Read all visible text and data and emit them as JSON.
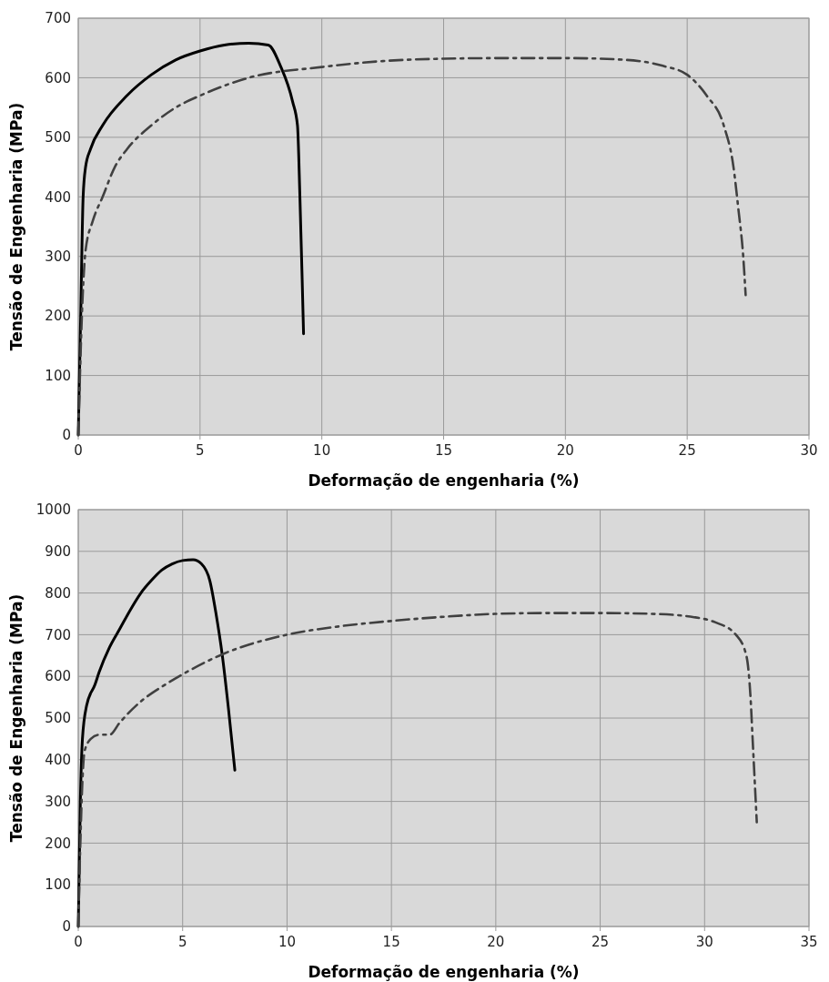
{
  "chart_data": [
    {
      "type": "line",
      "xlabel": "Deformação de engenharia  (%)",
      "ylabel": "Tensão de Engenharia (MPa)",
      "xlim": [
        0,
        30
      ],
      "xticks": [
        0,
        5,
        10,
        15,
        20,
        25,
        30
      ],
      "ylim": [
        0,
        700
      ],
      "yticks": [
        0,
        100,
        200,
        300,
        400,
        500,
        600,
        700
      ],
      "grid": true,
      "series": [
        {
          "color": "#000000",
          "line_style": "solid",
          "x": [
            0,
            0.1,
            0.2,
            0.3,
            0.5,
            1,
            2,
            3,
            4,
            5,
            6,
            7,
            7.8,
            8.3,
            8.8,
            9,
            9.1,
            9.2,
            9.25
          ],
          "values": [
            0,
            200,
            400,
            450,
            480,
            520,
            570,
            605,
            630,
            645,
            655,
            658,
            655,
            620,
            560,
            520,
            400,
            250,
            170
          ]
        },
        {
          "color": "#404040",
          "line_style": "dashed",
          "x": [
            0,
            0.2,
            0.3,
            0.6,
            1,
            1.5,
            2,
            3,
            4,
            5,
            7,
            10,
            12.5,
            15,
            17.5,
            20,
            22.5,
            24,
            25,
            25.8,
            26.5,
            26.9,
            27.1,
            27.3,
            27.4
          ],
          "values": [
            0,
            250,
            310,
            360,
            400,
            450,
            480,
            520,
            550,
            570,
            600,
            618,
            628,
            632,
            633,
            633,
            630,
            620,
            605,
            570,
            520,
            450,
            380,
            300,
            235
          ]
        }
      ]
    },
    {
      "type": "line",
      "xlabel": "Deformação de engenharia  (%)",
      "ylabel": "Tensão de Engenharia (MPa)",
      "xlim": [
        0,
        35
      ],
      "xticks": [
        0,
        5,
        10,
        15,
        20,
        25,
        30,
        35
      ],
      "ylim": [
        0,
        1000
      ],
      "yticks": [
        0,
        100,
        200,
        300,
        400,
        500,
        600,
        700,
        800,
        900,
        1000
      ],
      "grid": true,
      "series": [
        {
          "color": "#000000",
          "line_style": "solid",
          "x": [
            0,
            0.1,
            0.2,
            0.4,
            0.8,
            1,
            1.5,
            2,
            2.5,
            3,
            3.5,
            4,
            4.5,
            5,
            5.5,
            5.9,
            6.3,
            6.6,
            6.9,
            7.2,
            7.5
          ],
          "values": [
            0,
            300,
            450,
            530,
            580,
            610,
            670,
            715,
            760,
            800,
            830,
            855,
            870,
            878,
            880,
            870,
            830,
            750,
            650,
            520,
            375
          ]
        },
        {
          "color": "#404040",
          "line_style": "dashed",
          "x": [
            0,
            0.1,
            0.2,
            0.3,
            0.6,
            1,
            1.5,
            2,
            3,
            4,
            5,
            7,
            10,
            12.5,
            15,
            17.5,
            20,
            22.5,
            25,
            27.5,
            29.5,
            30.5,
            31.5,
            32,
            32.2,
            32.3,
            32.4,
            32.5
          ],
          "values": [
            0,
            200,
            350,
            420,
            450,
            460,
            460,
            490,
            540,
            575,
            605,
            655,
            700,
            720,
            733,
            743,
            750,
            752,
            752,
            750,
            742,
            730,
            700,
            650,
            550,
            450,
            350,
            250
          ]
        }
      ]
    }
  ]
}
